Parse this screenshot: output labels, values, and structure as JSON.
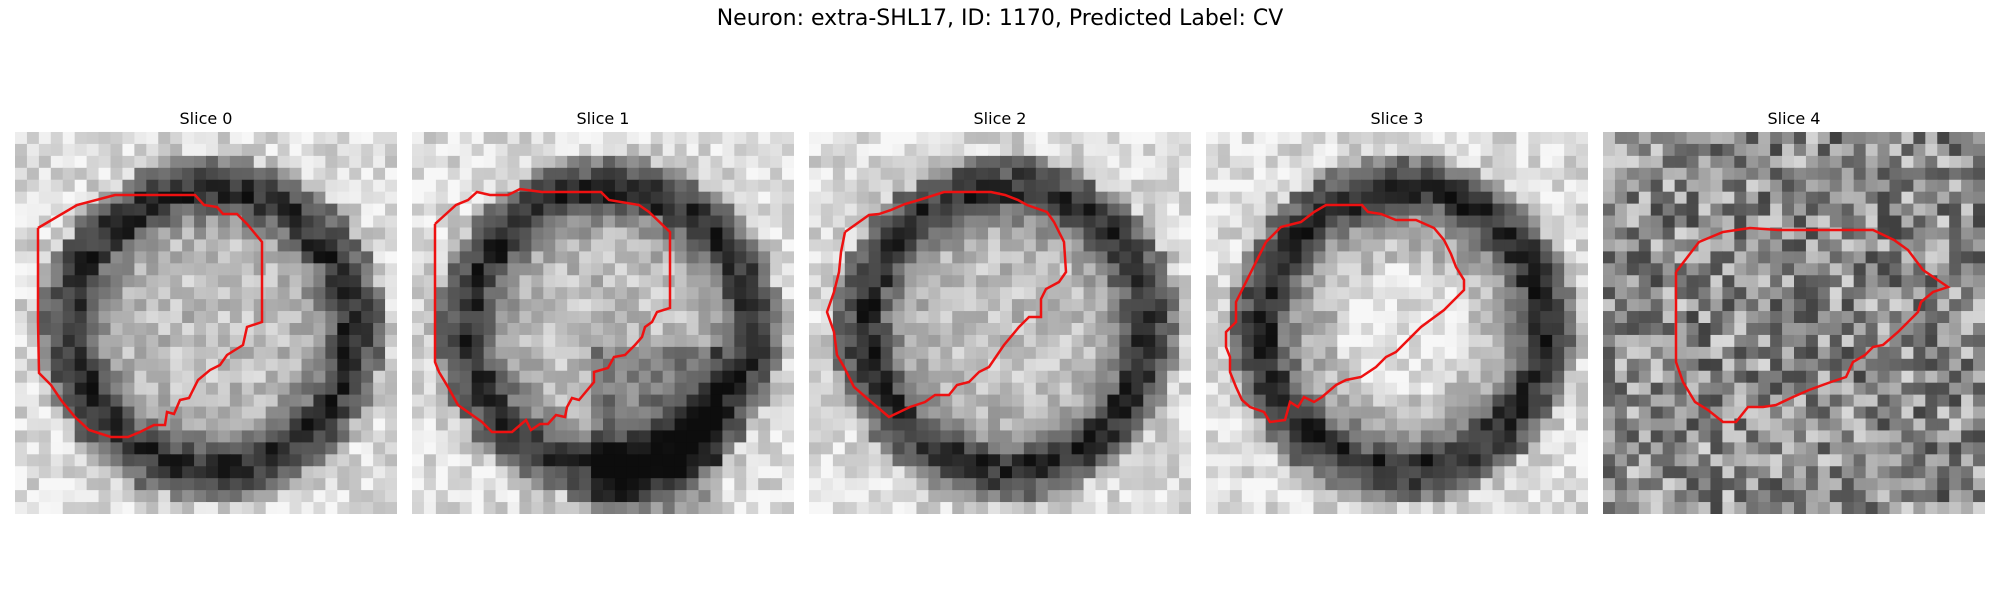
{
  "figure": {
    "title": "Neuron: extra-SHL17, ID: 1170, Predicted Label: CV"
  },
  "contour_color": "#ee1111",
  "panels": [
    {
      "title": "Slice 0"
    },
    {
      "title": "Slice 1"
    },
    {
      "title": "Slice 2"
    },
    {
      "title": "Slice 3"
    },
    {
      "title": "Slice 4"
    }
  ]
}
